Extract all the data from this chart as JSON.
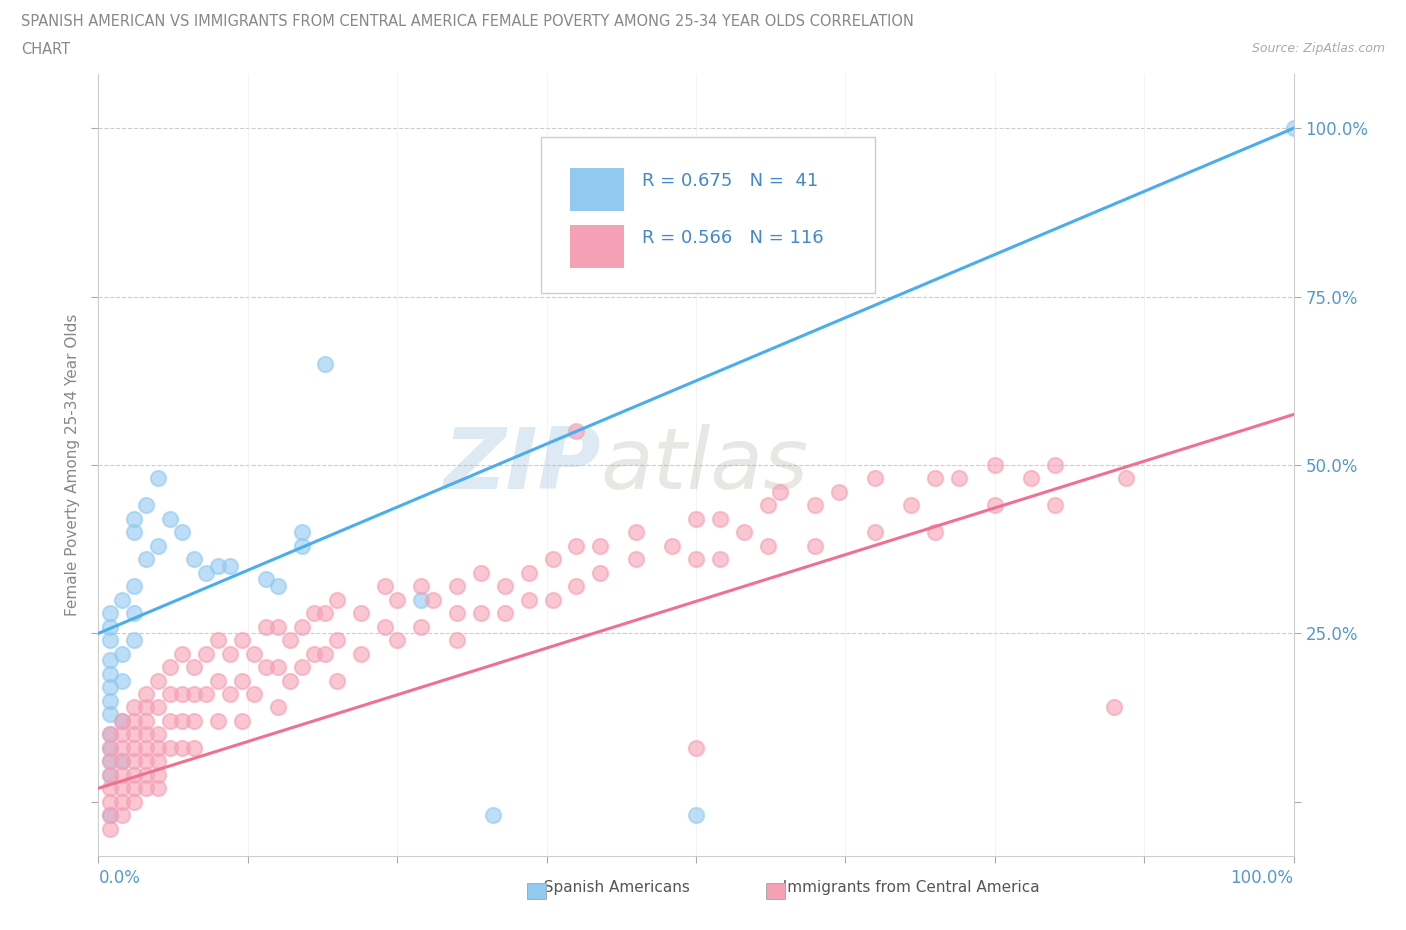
{
  "title_line1": "SPANISH AMERICAN VS IMMIGRANTS FROM CENTRAL AMERICA FEMALE POVERTY AMONG 25-34 YEAR OLDS CORRELATION",
  "title_line2": "CHART",
  "source_text": "Source: ZipAtlas.com",
  "ylabel": "Female Poverty Among 25-34 Year Olds",
  "watermark_zip": "ZIP",
  "watermark_atlas": "atlas",
  "blue_color": "#91C9F0",
  "pink_color": "#F5A0B5",
  "blue_line_color": "#4AADEE",
  "pink_line_color": "#F07090",
  "title_color": "#888888",
  "axis_label_color": "#5599CC",
  "legend_r_color": "#4488CC",
  "blue_scatter": [
    [
      0.01,
      0.28
    ],
    [
      0.01,
      0.26
    ],
    [
      0.01,
      0.24
    ],
    [
      0.01,
      0.21
    ],
    [
      0.01,
      0.19
    ],
    [
      0.01,
      0.17
    ],
    [
      0.01,
      0.15
    ],
    [
      0.01,
      0.13
    ],
    [
      0.01,
      0.1
    ],
    [
      0.01,
      0.08
    ],
    [
      0.01,
      0.06
    ],
    [
      0.01,
      0.04
    ],
    [
      0.01,
      -0.02
    ],
    [
      0.02,
      0.3
    ],
    [
      0.02,
      0.22
    ],
    [
      0.02,
      0.18
    ],
    [
      0.02,
      0.12
    ],
    [
      0.02,
      0.06
    ],
    [
      0.03,
      0.42
    ],
    [
      0.03,
      0.4
    ],
    [
      0.03,
      0.32
    ],
    [
      0.03,
      0.28
    ],
    [
      0.03,
      0.24
    ],
    [
      0.04,
      0.44
    ],
    [
      0.04,
      0.36
    ],
    [
      0.05,
      0.48
    ],
    [
      0.05,
      0.38
    ],
    [
      0.06,
      0.42
    ],
    [
      0.07,
      0.4
    ],
    [
      0.08,
      0.36
    ],
    [
      0.09,
      0.34
    ],
    [
      0.1,
      0.35
    ],
    [
      0.11,
      0.35
    ],
    [
      0.14,
      0.33
    ],
    [
      0.15,
      0.32
    ],
    [
      0.17,
      0.4
    ],
    [
      0.17,
      0.38
    ],
    [
      0.19,
      0.65
    ],
    [
      0.27,
      0.3
    ],
    [
      0.33,
      -0.02
    ],
    [
      0.5,
      -0.02
    ],
    [
      1.0,
      1.0
    ]
  ],
  "pink_scatter": [
    [
      0.01,
      0.1
    ],
    [
      0.01,
      0.08
    ],
    [
      0.01,
      0.06
    ],
    [
      0.01,
      0.04
    ],
    [
      0.01,
      0.02
    ],
    [
      0.01,
      0.0
    ],
    [
      0.01,
      -0.02
    ],
    [
      0.01,
      -0.04
    ],
    [
      0.02,
      0.12
    ],
    [
      0.02,
      0.1
    ],
    [
      0.02,
      0.08
    ],
    [
      0.02,
      0.06
    ],
    [
      0.02,
      0.04
    ],
    [
      0.02,
      0.02
    ],
    [
      0.02,
      0.0
    ],
    [
      0.02,
      -0.02
    ],
    [
      0.03,
      0.14
    ],
    [
      0.03,
      0.12
    ],
    [
      0.03,
      0.1
    ],
    [
      0.03,
      0.08
    ],
    [
      0.03,
      0.06
    ],
    [
      0.03,
      0.04
    ],
    [
      0.03,
      0.02
    ],
    [
      0.03,
      0.0
    ],
    [
      0.04,
      0.16
    ],
    [
      0.04,
      0.14
    ],
    [
      0.04,
      0.12
    ],
    [
      0.04,
      0.1
    ],
    [
      0.04,
      0.08
    ],
    [
      0.04,
      0.06
    ],
    [
      0.04,
      0.04
    ],
    [
      0.04,
      0.02
    ],
    [
      0.05,
      0.18
    ],
    [
      0.05,
      0.14
    ],
    [
      0.05,
      0.1
    ],
    [
      0.05,
      0.08
    ],
    [
      0.05,
      0.06
    ],
    [
      0.05,
      0.04
    ],
    [
      0.05,
      0.02
    ],
    [
      0.06,
      0.2
    ],
    [
      0.06,
      0.16
    ],
    [
      0.06,
      0.12
    ],
    [
      0.06,
      0.08
    ],
    [
      0.07,
      0.22
    ],
    [
      0.07,
      0.16
    ],
    [
      0.07,
      0.12
    ],
    [
      0.07,
      0.08
    ],
    [
      0.08,
      0.2
    ],
    [
      0.08,
      0.16
    ],
    [
      0.08,
      0.12
    ],
    [
      0.08,
      0.08
    ],
    [
      0.09,
      0.22
    ],
    [
      0.09,
      0.16
    ],
    [
      0.1,
      0.24
    ],
    [
      0.1,
      0.18
    ],
    [
      0.1,
      0.12
    ],
    [
      0.11,
      0.22
    ],
    [
      0.11,
      0.16
    ],
    [
      0.12,
      0.24
    ],
    [
      0.12,
      0.18
    ],
    [
      0.12,
      0.12
    ],
    [
      0.13,
      0.22
    ],
    [
      0.13,
      0.16
    ],
    [
      0.14,
      0.26
    ],
    [
      0.14,
      0.2
    ],
    [
      0.15,
      0.26
    ],
    [
      0.15,
      0.2
    ],
    [
      0.15,
      0.14
    ],
    [
      0.16,
      0.24
    ],
    [
      0.16,
      0.18
    ],
    [
      0.17,
      0.26
    ],
    [
      0.17,
      0.2
    ],
    [
      0.18,
      0.28
    ],
    [
      0.18,
      0.22
    ],
    [
      0.19,
      0.28
    ],
    [
      0.19,
      0.22
    ],
    [
      0.2,
      0.3
    ],
    [
      0.2,
      0.24
    ],
    [
      0.2,
      0.18
    ],
    [
      0.22,
      0.28
    ],
    [
      0.22,
      0.22
    ],
    [
      0.24,
      0.32
    ],
    [
      0.24,
      0.26
    ],
    [
      0.25,
      0.3
    ],
    [
      0.25,
      0.24
    ],
    [
      0.27,
      0.32
    ],
    [
      0.27,
      0.26
    ],
    [
      0.28,
      0.3
    ],
    [
      0.3,
      0.32
    ],
    [
      0.3,
      0.28
    ],
    [
      0.3,
      0.24
    ],
    [
      0.32,
      0.34
    ],
    [
      0.32,
      0.28
    ],
    [
      0.34,
      0.32
    ],
    [
      0.34,
      0.28
    ],
    [
      0.36,
      0.34
    ],
    [
      0.36,
      0.3
    ],
    [
      0.38,
      0.36
    ],
    [
      0.38,
      0.3
    ],
    [
      0.4,
      0.38
    ],
    [
      0.4,
      0.32
    ],
    [
      0.42,
      0.38
    ],
    [
      0.42,
      0.34
    ],
    [
      0.45,
      0.4
    ],
    [
      0.45,
      0.36
    ],
    [
      0.48,
      0.38
    ],
    [
      0.5,
      0.42
    ],
    [
      0.5,
      0.36
    ],
    [
      0.5,
      0.08
    ],
    [
      0.52,
      0.42
    ],
    [
      0.52,
      0.36
    ],
    [
      0.54,
      0.4
    ],
    [
      0.56,
      0.44
    ],
    [
      0.56,
      0.38
    ],
    [
      0.57,
      0.46
    ],
    [
      0.6,
      0.44
    ],
    [
      0.6,
      0.38
    ],
    [
      0.62,
      0.46
    ],
    [
      0.65,
      0.48
    ],
    [
      0.65,
      0.4
    ],
    [
      0.68,
      0.44
    ],
    [
      0.7,
      0.48
    ],
    [
      0.7,
      0.4
    ],
    [
      0.72,
      0.48
    ],
    [
      0.75,
      0.5
    ],
    [
      0.75,
      0.44
    ],
    [
      0.78,
      0.48
    ],
    [
      0.8,
      0.5
    ],
    [
      0.8,
      0.44
    ],
    [
      0.85,
      0.14
    ],
    [
      0.86,
      0.48
    ],
    [
      0.4,
      0.55
    ]
  ],
  "blue_trendline": [
    [
      0.0,
      0.25
    ],
    [
      1.0,
      1.0
    ]
  ],
  "pink_trendline": [
    [
      0.0,
      0.02
    ],
    [
      1.0,
      0.575
    ]
  ],
  "xlim": [
    0.0,
    1.0
  ],
  "ylim": [
    -0.08,
    1.08
  ],
  "yticks": [
    0.0,
    0.25,
    0.5,
    0.75,
    1.0
  ],
  "ytick_labels": [
    "",
    "25.0%",
    "50.0%",
    "75.0%",
    "100.0%"
  ],
  "xticks": [
    0.0,
    0.125,
    0.25,
    0.375,
    0.5,
    0.625,
    0.75,
    0.875,
    1.0
  ],
  "dpi": 100,
  "figsize": [
    14.06,
    9.3
  ]
}
